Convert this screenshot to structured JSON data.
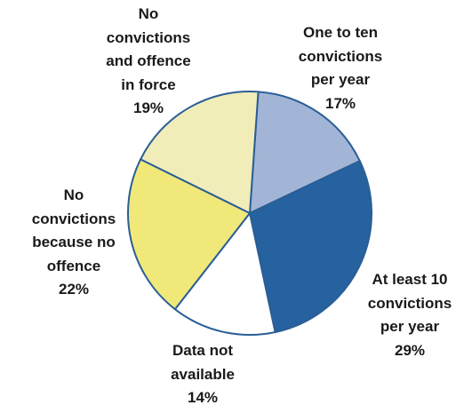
{
  "chart_data": {
    "type": "pie",
    "title": "",
    "slices": [
      {
        "label_lines": [
          "One to ten",
          "convictions",
          "per year"
        ],
        "pct_label": "17%",
        "value": 17,
        "color": "#a3b5d6"
      },
      {
        "label_lines": [
          "At least 10",
          "convictions",
          "per year"
        ],
        "pct_label": "29%",
        "value": 29,
        "color": "#25629f"
      },
      {
        "label_lines": [
          "Data not",
          "available"
        ],
        "pct_label": "14%",
        "value": 14,
        "color": "#ffffff"
      },
      {
        "label_lines": [
          "No",
          "convictions",
          "because no",
          "offence"
        ],
        "pct_label": "22%",
        "value": 22,
        "color": "#f0e97a"
      },
      {
        "label_lines": [
          "No",
          "convictions",
          "and offence",
          "in force"
        ],
        "pct_label": "19%",
        "value": 19,
        "color": "#f1edb9"
      }
    ],
    "start_angle_deg": 4,
    "direction": "clockwise",
    "stroke_color": "#2a5e96"
  }
}
